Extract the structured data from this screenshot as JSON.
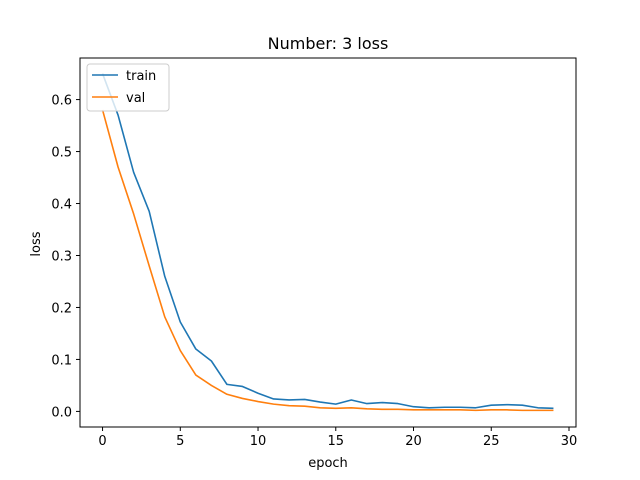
{
  "chart_data": {
    "type": "line",
    "title": "Number: 3 loss",
    "xlabel": "epoch",
    "ylabel": "loss",
    "xlim": [
      -1.45,
      30.45
    ],
    "ylim": [
      -0.03,
      0.68
    ],
    "xticks": [
      0,
      5,
      10,
      15,
      20,
      25,
      30
    ],
    "yticks": [
      0.0,
      0.1,
      0.2,
      0.3,
      0.4,
      0.5,
      0.6
    ],
    "ytick_labels": [
      "0.0",
      "0.1",
      "0.2",
      "0.3",
      "0.4",
      "0.5",
      "0.6"
    ],
    "grid": false,
    "legend_position": "top-left",
    "x": [
      0,
      1,
      2,
      3,
      4,
      5,
      6,
      7,
      8,
      9,
      10,
      11,
      12,
      13,
      14,
      15,
      16,
      17,
      18,
      19,
      20,
      21,
      22,
      23,
      24,
      25,
      26,
      27,
      28,
      29
    ],
    "series": [
      {
        "name": "train",
        "color": "#1f77b4",
        "values": [
          0.65,
          0.57,
          0.46,
          0.385,
          0.26,
          0.172,
          0.12,
          0.097,
          0.052,
          0.048,
          0.035,
          0.024,
          0.022,
          0.023,
          0.018,
          0.014,
          0.022,
          0.015,
          0.017,
          0.015,
          0.009,
          0.007,
          0.008,
          0.008,
          0.007,
          0.012,
          0.013,
          0.012,
          0.007,
          0.006
        ]
      },
      {
        "name": "val",
        "color": "#ff7f0e",
        "values": [
          0.58,
          0.47,
          0.38,
          0.28,
          0.182,
          0.117,
          0.07,
          0.05,
          0.033,
          0.025,
          0.019,
          0.014,
          0.011,
          0.01,
          0.007,
          0.006,
          0.007,
          0.005,
          0.004,
          0.004,
          0.003,
          0.003,
          0.003,
          0.003,
          0.002,
          0.003,
          0.003,
          0.002,
          0.002,
          0.002
        ]
      }
    ]
  }
}
